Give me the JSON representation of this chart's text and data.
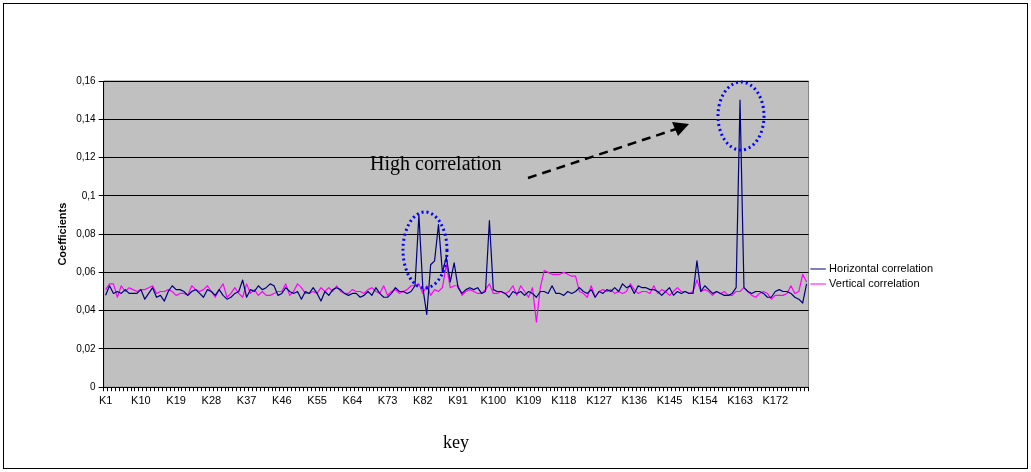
{
  "chart_data": {
    "type": "line",
    "xlabel": "key",
    "ylabel": "Coefficients",
    "categories": [
      "K1",
      null,
      null,
      null,
      null,
      null,
      null,
      null,
      null,
      "K10",
      null,
      null,
      null,
      null,
      null,
      null,
      null,
      null,
      "K19",
      null,
      null,
      null,
      null,
      null,
      null,
      null,
      null,
      "K28",
      null,
      null,
      null,
      null,
      null,
      null,
      null,
      null,
      "K37",
      null,
      null,
      null,
      null,
      null,
      null,
      null,
      null,
      "K46",
      null,
      null,
      null,
      null,
      null,
      null,
      null,
      null,
      "K55",
      null,
      null,
      null,
      null,
      null,
      null,
      null,
      null,
      "K64",
      null,
      null,
      null,
      null,
      null,
      null,
      null,
      null,
      "K73",
      null,
      null,
      null,
      null,
      null,
      null,
      null,
      null,
      "K82",
      null,
      null,
      null,
      null,
      null,
      null,
      null,
      null,
      "K91",
      null,
      null,
      null,
      null,
      null,
      null,
      null,
      null,
      "K100",
      null,
      null,
      null,
      null,
      null,
      null,
      null,
      null,
      "K109",
      null,
      null,
      null,
      null,
      null,
      null,
      null,
      null,
      "K118",
      null,
      null,
      null,
      null,
      null,
      null,
      null,
      null,
      "K127",
      null,
      null,
      null,
      null,
      null,
      null,
      null,
      null,
      "K136",
      null,
      null,
      null,
      null,
      null,
      null,
      null,
      null,
      "K145",
      null,
      null,
      null,
      null,
      null,
      null,
      null,
      null,
      "K154",
      null,
      null,
      null,
      null,
      null,
      null,
      null,
      null,
      "K163",
      null,
      null,
      null,
      null,
      null,
      null,
      null,
      null,
      "K172",
      null,
      null,
      null,
      null,
      null,
      null,
      null,
      null
    ],
    "series": [
      {
        "name": "Horizontal correlation",
        "color": "#000080",
        "values": [
          0.048,
          0.053,
          0.049,
          0.05,
          0.049,
          0.051,
          0.049,
          0.049,
          0.049,
          0.051,
          0.046,
          0.049,
          0.052,
          0.047,
          0.048,
          0.045,
          0.05,
          0.053,
          0.051,
          0.051,
          0.05,
          0.048,
          0.05,
          0.051,
          0.049,
          0.047,
          0.051,
          0.05,
          0.048,
          0.051,
          0.048,
          0.046,
          0.047,
          0.049,
          0.05,
          0.056,
          0.047,
          0.051,
          0.05,
          0.053,
          0.051,
          0.052,
          0.054,
          0.053,
          0.048,
          0.049,
          0.052,
          0.05,
          0.049,
          0.05,
          0.046,
          0.05,
          0.049,
          0.052,
          0.049,
          0.045,
          0.05,
          0.048,
          0.051,
          0.052,
          0.051,
          0.049,
          0.048,
          0.049,
          0.049,
          0.047,
          0.048,
          0.05,
          0.048,
          0.052,
          0.049,
          0.047,
          0.047,
          0.049,
          0.052,
          0.05,
          0.05,
          0.049,
          0.05,
          0.053,
          0.09,
          0.052,
          0.038,
          0.064,
          0.066,
          0.085,
          0.06,
          0.068,
          0.055,
          0.065,
          0.052,
          0.049,
          0.051,
          0.052,
          0.051,
          0.052,
          0.049,
          0.05,
          0.087,
          0.051,
          0.05,
          0.05,
          0.049,
          0.047,
          0.05,
          0.049,
          0.05,
          0.048,
          0.05,
          0.049,
          0.047,
          0.05,
          0.05,
          0.049,
          0.053,
          0.049,
          0.049,
          0.048,
          0.05,
          0.049,
          0.05,
          0.052,
          0.05,
          0.049,
          0.051,
          0.047,
          0.05,
          0.049,
          0.051,
          0.05,
          0.052,
          0.05,
          0.054,
          0.052,
          0.053,
          0.049,
          0.053,
          0.052,
          0.052,
          0.051,
          0.051,
          0.05,
          0.048,
          0.05,
          0.052,
          0.048,
          0.05,
          0.049,
          0.05,
          0.049,
          0.049,
          0.066,
          0.05,
          0.053,
          0.051,
          0.049,
          0.05,
          0.049,
          0.048,
          0.048,
          0.049,
          0.052,
          0.15,
          0.052,
          0.05,
          0.049,
          0.05,
          0.05,
          0.049,
          0.047,
          0.047,
          0.05,
          0.051,
          0.05,
          0.05,
          0.049,
          0.047,
          0.046,
          0.044,
          0.054
        ]
      },
      {
        "name": "Vertical correlation",
        "color": "#ff00ff",
        "values": [
          0.051,
          0.054,
          0.054,
          0.047,
          0.053,
          0.05,
          0.052,
          0.051,
          0.05,
          0.051,
          0.051,
          0.052,
          0.053,
          0.049,
          0.05,
          0.05,
          0.051,
          0.05,
          0.048,
          0.049,
          0.049,
          0.048,
          0.053,
          0.051,
          0.05,
          0.051,
          0.053,
          0.05,
          0.047,
          0.051,
          0.054,
          0.047,
          0.049,
          0.052,
          0.049,
          0.047,
          0.054,
          0.049,
          0.051,
          0.048,
          0.05,
          0.048,
          0.048,
          0.049,
          0.05,
          0.05,
          0.054,
          0.048,
          0.05,
          0.054,
          0.052,
          0.049,
          0.049,
          0.05,
          0.049,
          0.052,
          0.05,
          0.052,
          0.05,
          0.053,
          0.05,
          0.049,
          0.049,
          0.051,
          0.05,
          0.05,
          0.049,
          0.051,
          0.052,
          0.05,
          0.049,
          0.053,
          0.048,
          0.05,
          0.051,
          0.049,
          0.05,
          0.051,
          0.053,
          0.053,
          0.054,
          0.049,
          0.053,
          0.048,
          0.051,
          0.05,
          0.052,
          0.064,
          0.052,
          0.053,
          0.053,
          0.048,
          0.05,
          0.051,
          0.05,
          0.049,
          0.049,
          0.051,
          0.054,
          0.049,
          0.049,
          0.05,
          0.049,
          0.05,
          0.053,
          0.048,
          0.053,
          0.05,
          0.047,
          0.052,
          0.034,
          0.052,
          0.061,
          0.06,
          0.059,
          0.059,
          0.059,
          0.06,
          0.059,
          0.058,
          0.058,
          0.05,
          0.049,
          0.047,
          0.053,
          0.047,
          0.05,
          0.051,
          0.05,
          0.051,
          0.049,
          0.05,
          0.049,
          0.05,
          0.054,
          0.051,
          0.049,
          0.05,
          0.05,
          0.049,
          0.053,
          0.049,
          0.051,
          0.05,
          0.048,
          0.05,
          0.052,
          0.05,
          0.05,
          0.049,
          0.05,
          0.056,
          0.05,
          0.051,
          0.05,
          0.048,
          0.05,
          0.049,
          0.05,
          0.048,
          0.048,
          0.05,
          0.05,
          0.052,
          0.05,
          0.048,
          0.047,
          0.049,
          0.05,
          0.049,
          0.046,
          0.048,
          0.048,
          0.048,
          0.049,
          0.053,
          0.049,
          0.05,
          0.059,
          0.055
        ]
      }
    ],
    "ylim": [
      0,
      0.16
    ],
    "yticks": [
      0,
      {
        "value": 0.02,
        "label": "0,02"
      },
      {
        "value": 0.04,
        "label": "0,04"
      },
      {
        "value": 0.06,
        "label": "0,06"
      },
      {
        "value": 0.08,
        "label": "0,08"
      },
      {
        "value": 0.1,
        "label": "0,1"
      },
      {
        "value": 0.12,
        "label": "0,12"
      },
      {
        "value": 0.14,
        "label": "0,14"
      },
      {
        "value": 0.16,
        "label": "0,16"
      }
    ],
    "grid": "y",
    "legend": "right",
    "marker": "none",
    "line_style": "solid",
    "annotations": [
      "High correlation"
    ]
  }
}
